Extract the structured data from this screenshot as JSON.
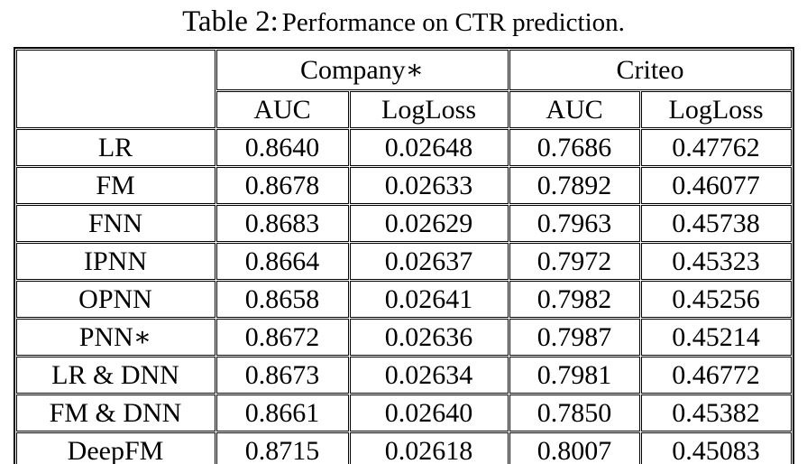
{
  "caption": {
    "label": "Table 2:",
    "text": "Performance on CTR prediction."
  },
  "table": {
    "corner_label": "",
    "col_groups": [
      {
        "label": "Company∗"
      },
      {
        "label": "Criteo"
      }
    ],
    "sub_headers": [
      "AUC",
      "LogLoss",
      "AUC",
      "LogLoss"
    ],
    "rows": [
      {
        "model": "LR",
        "values": [
          "0.8640",
          "0.02648",
          "0.7686",
          "0.47762"
        ],
        "bold": false
      },
      {
        "model": "FM",
        "values": [
          "0.8678",
          "0.02633",
          "0.7892",
          "0.46077"
        ],
        "bold": false
      },
      {
        "model": "FNN",
        "values": [
          "0.8683",
          "0.02629",
          "0.7963",
          "0.45738"
        ],
        "bold": false
      },
      {
        "model": "IPNN",
        "values": [
          "0.8664",
          "0.02637",
          "0.7972",
          "0.45323"
        ],
        "bold": false
      },
      {
        "model": "OPNN",
        "values": [
          "0.8658",
          "0.02641",
          "0.7982",
          "0.45256"
        ],
        "bold": false
      },
      {
        "model": "PNN∗",
        "values": [
          "0.8672",
          "0.02636",
          "0.7987",
          "0.45214"
        ],
        "bold": false
      },
      {
        "model": "LR & DNN",
        "values": [
          "0.8673",
          "0.02634",
          "0.7981",
          "0.46772"
        ],
        "bold": false
      },
      {
        "model": "FM & DNN",
        "values": [
          "0.8661",
          "0.02640",
          "0.7850",
          "0.45382"
        ],
        "bold": false
      },
      {
        "model": "DeepFM",
        "values": [
          "0.8715",
          "0.02618",
          "0.8007",
          "0.45083"
        ],
        "bold": true
      }
    ]
  },
  "colors": {
    "text": "#000000",
    "border": "#000000",
    "background": "#ffffff"
  }
}
